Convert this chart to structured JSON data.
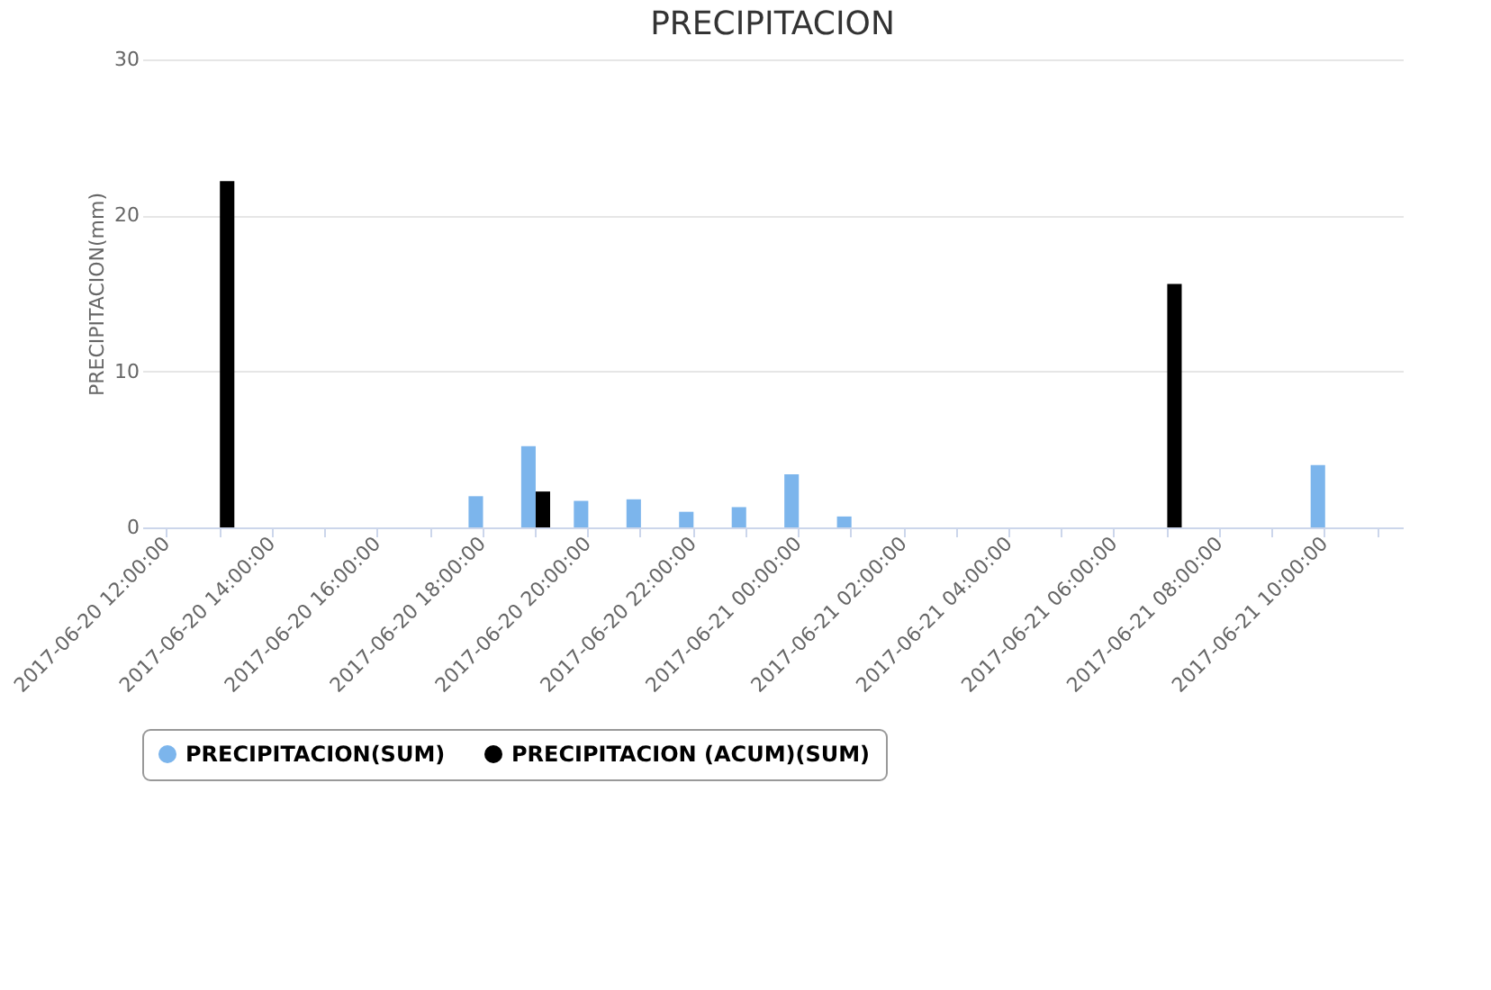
{
  "chart_data": {
    "type": "bar",
    "title": "PRECIPITACION",
    "ylabel": "PRECIPITACION(mm)",
    "categories": [
      "2017-06-20 12:00:00",
      null,
      "2017-06-20 14:00:00",
      null,
      "2017-06-20 16:00:00",
      null,
      "2017-06-20 18:00:00",
      null,
      "2017-06-20 20:00:00",
      null,
      "2017-06-20 22:00:00",
      null,
      "2017-06-21 00:00:00",
      null,
      "2017-06-21 02:00:00",
      null,
      "2017-06-21 04:00:00",
      null,
      "2017-06-21 06:00:00",
      null,
      "2017-06-21 08:00:00",
      null,
      "2017-06-21 10:00:00",
      null
    ],
    "series": [
      {
        "name": "PRECIPITACION(SUM)",
        "color": "#7cb5ec",
        "values": [
          null,
          null,
          null,
          null,
          null,
          null,
          2.0,
          5.2,
          1.7,
          1.8,
          1.0,
          1.3,
          3.4,
          0.7,
          null,
          null,
          null,
          null,
          null,
          null,
          null,
          null,
          4.0,
          null
        ]
      },
      {
        "name": "PRECIPITACION (ACUM)(SUM)",
        "color": "#000000",
        "values": [
          null,
          22.2,
          null,
          null,
          null,
          null,
          null,
          2.3,
          null,
          null,
          null,
          null,
          null,
          null,
          null,
          null,
          null,
          null,
          null,
          15.6,
          null,
          null,
          null,
          null
        ]
      }
    ],
    "ylim": [
      0,
      30
    ],
    "yticks": [
      0,
      10,
      20,
      30
    ],
    "grid": "y",
    "legend": "bottom"
  }
}
